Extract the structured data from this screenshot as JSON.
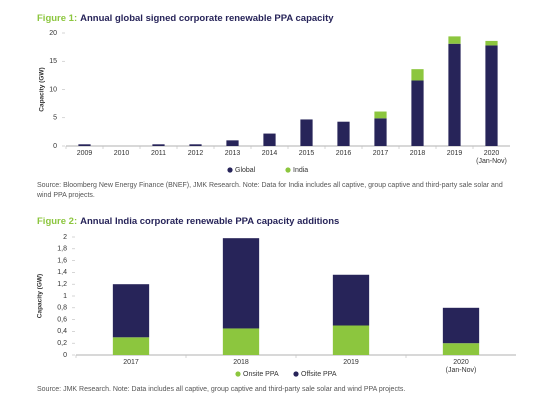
{
  "chart_data": [
    {
      "type": "bar",
      "stacked": true,
      "label": "Figure 1:",
      "title": "Annual global signed corporate renewable PPA capacity",
      "y_label": "Capacity (GW)",
      "categories": [
        "2009",
        "2010",
        "2011",
        "2012",
        "2013",
        "2014",
        "2015",
        "2016",
        "2017",
        "2018",
        "2019",
        "2020 (Jan-Nov)"
      ],
      "series": [
        {
          "name": "Global",
          "color": "#272459",
          "values": [
            0.3,
            0,
            0.3,
            0.3,
            1.0,
            2.2,
            4.7,
            4.3,
            4.9,
            11.6,
            18.1,
            17.8
          ]
        },
        {
          "name": "India",
          "color": "#8cc63e",
          "values": [
            0,
            0,
            0,
            0,
            0,
            0,
            0,
            0,
            1.2,
            2.0,
            1.3,
            0.8
          ]
        }
      ],
      "ylim": [
        0,
        20
      ],
      "yticks": [
        0,
        5,
        10,
        15,
        20
      ],
      "source": "Source: Bloomberg New Energy Finance (BNEF), JMK Research. Note: Data for India includes all captive, group captive and third-party sale solar and wind PPA projects."
    },
    {
      "type": "bar",
      "stacked": true,
      "label": "Figure 2:",
      "title": "Annual India corporate renewable PPA capacity additions",
      "y_label": "Capacity (GW)",
      "categories": [
        "2017",
        "2018",
        "2019",
        "2020 (Jan-Nov)"
      ],
      "series": [
        {
          "name": "Onsite PPA",
          "color": "#8cc63e",
          "values": [
            0.3,
            0.45,
            0.5,
            0.2
          ]
        },
        {
          "name": "Offsite PPA",
          "color": "#272459",
          "values": [
            0.9,
            1.53,
            0.86,
            0.6
          ]
        }
      ],
      "ylim": [
        0,
        2
      ],
      "yticks": [
        0,
        {
          "value": 0.2,
          "label": "0,2"
        },
        {
          "value": 0.4,
          "label": "0,4"
        },
        {
          "value": 0.6,
          "label": "0,6"
        },
        {
          "value": 0.8,
          "label": "0,8"
        },
        1,
        {
          "value": 1.2,
          "label": "1,2"
        },
        {
          "value": 1.4,
          "label": "1,4"
        },
        {
          "value": 1.6,
          "label": "1,6"
        },
        {
          "value": 1.8,
          "label": "1,8"
        },
        2
      ],
      "source": "Source: JMK Research. Note: Data includes all captive, group captive and third-party sale solar and wind PPA projects."
    }
  ]
}
